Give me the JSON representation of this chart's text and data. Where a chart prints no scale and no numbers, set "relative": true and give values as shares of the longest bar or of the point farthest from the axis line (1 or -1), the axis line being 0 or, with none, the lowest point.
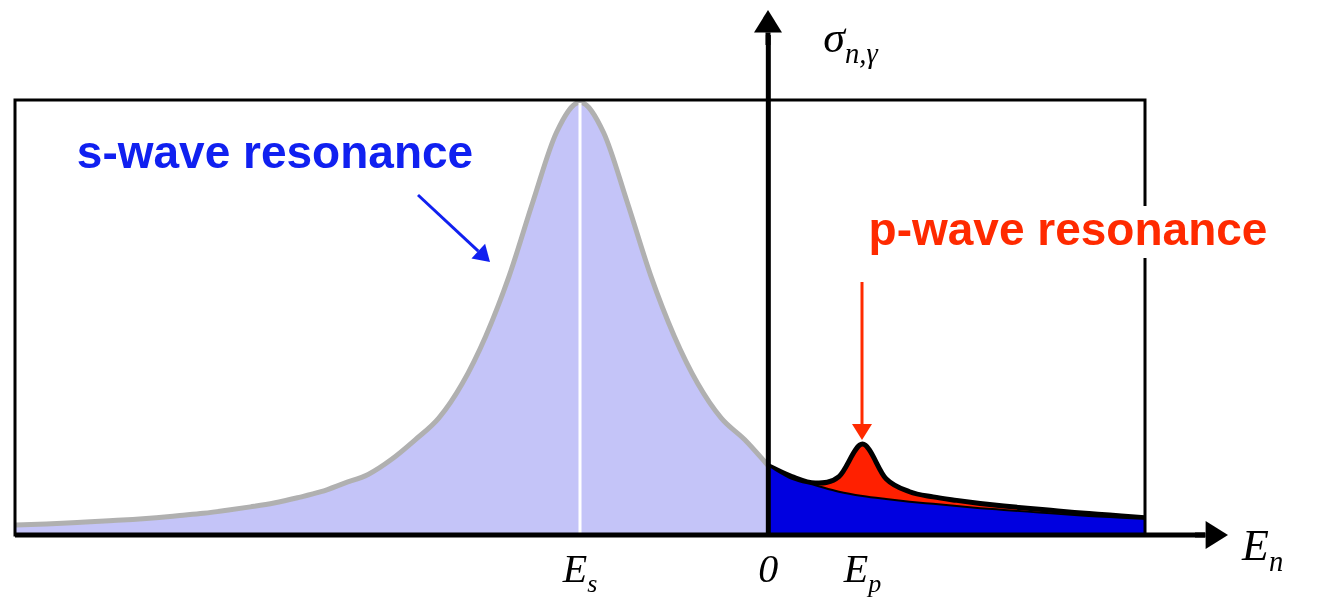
{
  "chart_data": {
    "type": "area",
    "relative": true,
    "xlabel": "E$_{n}$",
    "ylabel": "σ$_{n,γ}$",
    "categories": [
      null,
      null,
      null,
      null,
      null,
      null,
      null,
      null,
      null,
      null,
      null,
      null,
      null,
      null,
      null,
      null,
      null,
      null,
      null,
      null,
      null,
      null,
      null,
      null,
      "E$_{s}$",
      null,
      null,
      null,
      null,
      null,
      null,
      null,
      "0",
      null,
      null,
      null,
      "E$_{p}$",
      null,
      null,
      null,
      null,
      null,
      null,
      null,
      null,
      null,
      null,
      null,
      null
    ],
    "tick_labels": "x",
    "series": [
      {
        "color": "#c4c4f8",
        "values": [
          0.023,
          0.025,
          0.027,
          0.03,
          0.033,
          0.036,
          0.04,
          0.045,
          0.05,
          0.057,
          0.065,
          0.074,
          0.086,
          0.1,
          0.12,
          0.14,
          0.175,
          0.22,
          0.27,
          0.35,
          0.46,
          0.6,
          0.77,
          0.93,
          1,
          0.93,
          0.77,
          0.6,
          0.46,
          0.35,
          0.27,
          0.22,
          0.16,
          null,
          null,
          null,
          null,
          null,
          null,
          null,
          null,
          null,
          null,
          null,
          null,
          null,
          null,
          null,
          null
        ]
      },
      {
        "color": "#ff2000",
        "values": [
          null,
          null,
          null,
          null,
          null,
          null,
          null,
          null,
          null,
          null,
          null,
          null,
          null,
          null,
          null,
          null,
          null,
          null,
          null,
          null,
          null,
          null,
          null,
          null,
          null,
          null,
          null,
          null,
          null,
          null,
          null,
          null,
          0.16,
          0.135,
          0.12,
          0.135,
          0.21,
          0.13,
          0.1,
          0.088,
          0.08,
          0.073,
          0.067,
          0.062,
          0.057,
          0.052,
          0.048,
          0.044,
          0.04
        ]
      },
      {
        "color": "#0000e0",
        "values": [
          null,
          null,
          null,
          null,
          null,
          null,
          null,
          null,
          null,
          null,
          null,
          null,
          null,
          null,
          null,
          null,
          null,
          null,
          null,
          null,
          null,
          null,
          null,
          null,
          null,
          null,
          null,
          null,
          null,
          null,
          null,
          null,
          0.16,
          0.13,
          0.115,
          0.1,
          0.09,
          0.083,
          0.077,
          0.072,
          0.067,
          0.062,
          0.058,
          0.054,
          0.05,
          0.046,
          0.043,
          0.04,
          0.037
        ]
      }
    ],
    "ref_lines": [
      {
        "axis": "x",
        "value": "E$_{s}$",
        "color": "#ffffff"
      }
    ],
    "annotations": [
      "s-wave resonance",
      "p-wave resonance"
    ]
  }
}
